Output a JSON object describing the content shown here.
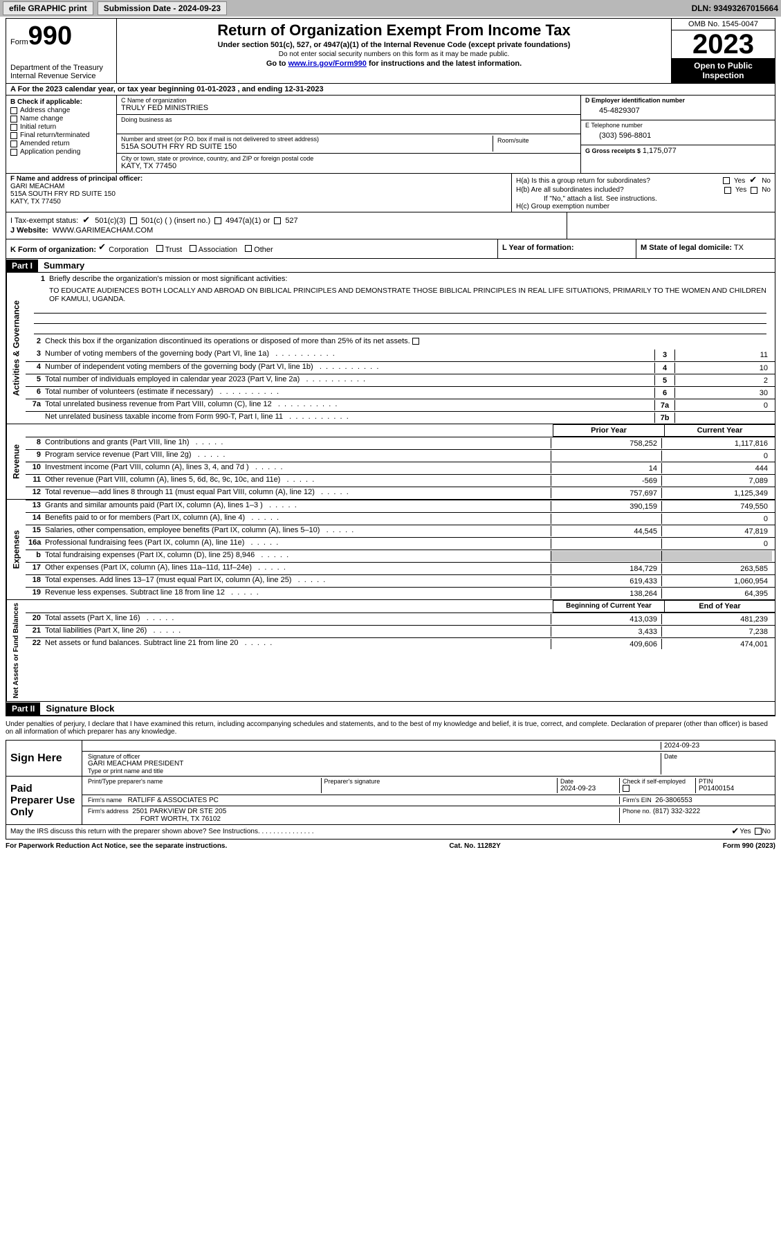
{
  "topbar": {
    "efile": "efile GRAPHIC print",
    "submission_label": "Submission Date - 2024-09-23",
    "dln": "DLN: 93493267015664"
  },
  "header": {
    "form_word": "Form",
    "form_num": "990",
    "dept": "Department of the Treasury",
    "irs": "Internal Revenue Service",
    "title": "Return of Organization Exempt From Income Tax",
    "sub1": "Under section 501(c), 527, or 4947(a)(1) of the Internal Revenue Code (except private foundations)",
    "sub2": "Do not enter social security numbers on this form as it may be made public.",
    "sub3_pre": "Go to ",
    "sub3_link": "www.irs.gov/Form990",
    "sub3_post": " for instructions and the latest information.",
    "omb": "OMB No. 1545-0047",
    "year": "2023",
    "open": "Open to Public Inspection"
  },
  "row_a": "A For the 2023 calendar year, or tax year beginning 01-01-2023   , and ending 12-31-2023",
  "col_b": {
    "label": "B Check if applicable:",
    "items": [
      "Address change",
      "Name change",
      "Initial return",
      "Final return/terminated",
      "Amended return",
      "Application pending"
    ]
  },
  "col_c": {
    "name_label": "C Name of organization",
    "name": "TRULY FED MINISTRIES",
    "dba_label": "Doing business as",
    "dba": "",
    "street_label": "Number and street (or P.O. box if mail is not delivered to street address)",
    "street": "515A SOUTH FRY RD SUITE 150",
    "room_label": "Room/suite",
    "room": "",
    "city_label": "City or town, state or province, country, and ZIP or foreign postal code",
    "city": "KATY, TX  77450"
  },
  "col_d": {
    "ein_label": "D Employer identification number",
    "ein": "45-4829307",
    "phone_label": "E Telephone number",
    "phone": "(303) 596-8801",
    "gross_label": "G Gross receipts $",
    "gross": "1,175,077"
  },
  "row_f": {
    "label": "F Name and address of principal officer:",
    "name": "GARI MEACHAM",
    "addr1": "515A SOUTH FRY RD SUITE 150",
    "addr2": "KATY, TX  77450"
  },
  "row_h": {
    "ha": "H(a)  Is this a group return for subordinates?",
    "hb": "H(b)  Are all subordinates included?",
    "hb_note": "If \"No,\" attach a list. See instructions.",
    "hc": "H(c)  Group exemption number",
    "yes": "Yes",
    "no": "No"
  },
  "row_i": {
    "label": "I   Tax-exempt status:",
    "c3": "501(c)(3)",
    "c_other": "501(c) (  ) (insert no.)",
    "a1": "4947(a)(1) or",
    "s527": "527"
  },
  "row_j": {
    "label": "J   Website:",
    "value": "WWW.GARIMEACHAM.COM"
  },
  "row_k": {
    "label": "K Form of organization:",
    "corp": "Corporation",
    "trust": "Trust",
    "assoc": "Association",
    "other": "Other",
    "l_label": "L Year of formation:",
    "l_value": "",
    "m_label": "M State of legal domicile:",
    "m_value": "TX"
  },
  "part1": {
    "header": "Part I",
    "title": "Summary",
    "line1_label": "Briefly describe the organization's mission or most significant activities:",
    "line1_text": "TO EDUCATE AUDIENCES BOTH LOCALLY AND ABROAD ON BIBLICAL PRINCIPLES AND DEMONSTRATE THOSE BIBLICAL PRINCIPLES IN REAL LIFE SITUATIONS, PRIMARILY TO THE WOMEN AND CHILDREN OF KAMULI, UGANDA.",
    "line2": "Check this box       if the organization discontinued its operations or disposed of more than 25% of its net assets.",
    "side_ag": "Activities & Governance",
    "side_rev": "Revenue",
    "side_exp": "Expenses",
    "side_net": "Net Assets or Fund Balances",
    "lines_gov": [
      {
        "n": "3",
        "t": "Number of voting members of the governing body (Part VI, line 1a)",
        "box": "3",
        "v": "11"
      },
      {
        "n": "4",
        "t": "Number of independent voting members of the governing body (Part VI, line 1b)",
        "box": "4",
        "v": "10"
      },
      {
        "n": "5",
        "t": "Total number of individuals employed in calendar year 2023 (Part V, line 2a)",
        "box": "5",
        "v": "2"
      },
      {
        "n": "6",
        "t": "Total number of volunteers (estimate if necessary)",
        "box": "6",
        "v": "30"
      },
      {
        "n": "7a",
        "t": "Total unrelated business revenue from Part VIII, column (C), line 12",
        "box": "7a",
        "v": "0"
      },
      {
        "n": "",
        "t": "Net unrelated business taxable income from Form 990-T, Part I, line 11",
        "box": "7b",
        "v": ""
      }
    ],
    "prior_year": "Prior Year",
    "current_year": "Current Year",
    "lines_rev": [
      {
        "n": "8",
        "t": "Contributions and grants (Part VIII, line 1h)",
        "p": "758,252",
        "c": "1,117,816"
      },
      {
        "n": "9",
        "t": "Program service revenue (Part VIII, line 2g)",
        "p": "",
        "c": "0"
      },
      {
        "n": "10",
        "t": "Investment income (Part VIII, column (A), lines 3, 4, and 7d )",
        "p": "14",
        "c": "444"
      },
      {
        "n": "11",
        "t": "Other revenue (Part VIII, column (A), lines 5, 6d, 8c, 9c, 10c, and 11e)",
        "p": "-569",
        "c": "7,089"
      },
      {
        "n": "12",
        "t": "Total revenue—add lines 8 through 11 (must equal Part VIII, column (A), line 12)",
        "p": "757,697",
        "c": "1,125,349"
      }
    ],
    "lines_exp": [
      {
        "n": "13",
        "t": "Grants and similar amounts paid (Part IX, column (A), lines 1–3 )",
        "p": "390,159",
        "c": "749,550"
      },
      {
        "n": "14",
        "t": "Benefits paid to or for members (Part IX, column (A), line 4)",
        "p": "",
        "c": "0"
      },
      {
        "n": "15",
        "t": "Salaries, other compensation, employee benefits (Part IX, column (A), lines 5–10)",
        "p": "44,545",
        "c": "47,819"
      },
      {
        "n": "16a",
        "t": "Professional fundraising fees (Part IX, column (A), line 11e)",
        "p": "",
        "c": "0"
      },
      {
        "n": "b",
        "t": "Total fundraising expenses (Part IX, column (D), line 25) 8,946",
        "p": "SHADED",
        "c": "SHADED"
      },
      {
        "n": "17",
        "t": "Other expenses (Part IX, column (A), lines 11a–11d, 11f–24e)",
        "p": "184,729",
        "c": "263,585"
      },
      {
        "n": "18",
        "t": "Total expenses. Add lines 13–17 (must equal Part IX, column (A), line 25)",
        "p": "619,433",
        "c": "1,060,954"
      },
      {
        "n": "19",
        "t": "Revenue less expenses. Subtract line 18 from line 12",
        "p": "138,264",
        "c": "64,395"
      }
    ],
    "beg_year": "Beginning of Current Year",
    "end_year": "End of Year",
    "lines_net": [
      {
        "n": "20",
        "t": "Total assets (Part X, line 16)",
        "p": "413,039",
        "c": "481,239"
      },
      {
        "n": "21",
        "t": "Total liabilities (Part X, line 26)",
        "p": "3,433",
        "c": "7,238"
      },
      {
        "n": "22",
        "t": "Net assets or fund balances. Subtract line 21 from line 20",
        "p": "409,606",
        "c": "474,001"
      }
    ]
  },
  "part2": {
    "header": "Part II",
    "title": "Signature Block",
    "declare": "Under penalties of perjury, I declare that I have examined this return, including accompanying schedules and statements, and to the best of my knowledge and belief, it is true, correct, and complete. Declaration of preparer (other than officer) is based on all information of which preparer has any knowledge.",
    "sign_here": "Sign Here",
    "sig_officer_label": "Signature of officer",
    "sig_officer": "GARI MEACHAM PRESIDENT",
    "sig_type_label": "Type or print name and title",
    "sig_date": "2024-09-23",
    "date_label": "Date",
    "paid_prep": "Paid Preparer Use Only",
    "prep_name_label": "Print/Type preparer's name",
    "prep_sig_label": "Preparer's signature",
    "prep_date": "2024-09-23",
    "check_if": "Check       if self-employed",
    "ptin_label": "PTIN",
    "ptin": "P01400154",
    "firm_name_label": "Firm's name",
    "firm_name": "RATLIFF & ASSOCIATES PC",
    "firm_ein_label": "Firm's EIN",
    "firm_ein": "26-3806553",
    "firm_addr_label": "Firm's address",
    "firm_addr1": "2501 PARKVIEW DR STE 205",
    "firm_addr2": "FORT WORTH, TX  76102",
    "phone_label": "Phone no.",
    "phone": "(817) 332-3222",
    "discuss": "May the IRS discuss this return with the preparer shown above? See Instructions.",
    "yes": "Yes",
    "no": "No"
  },
  "footer": {
    "left": "For Paperwork Reduction Act Notice, see the separate instructions.",
    "mid": "Cat. No. 11282Y",
    "right": "Form 990 (2023)"
  },
  "colors": {
    "black": "#000000",
    "topbar_bg": "#b8b8b8",
    "shaded": "#c8c8c8",
    "link": "#0000cc"
  }
}
